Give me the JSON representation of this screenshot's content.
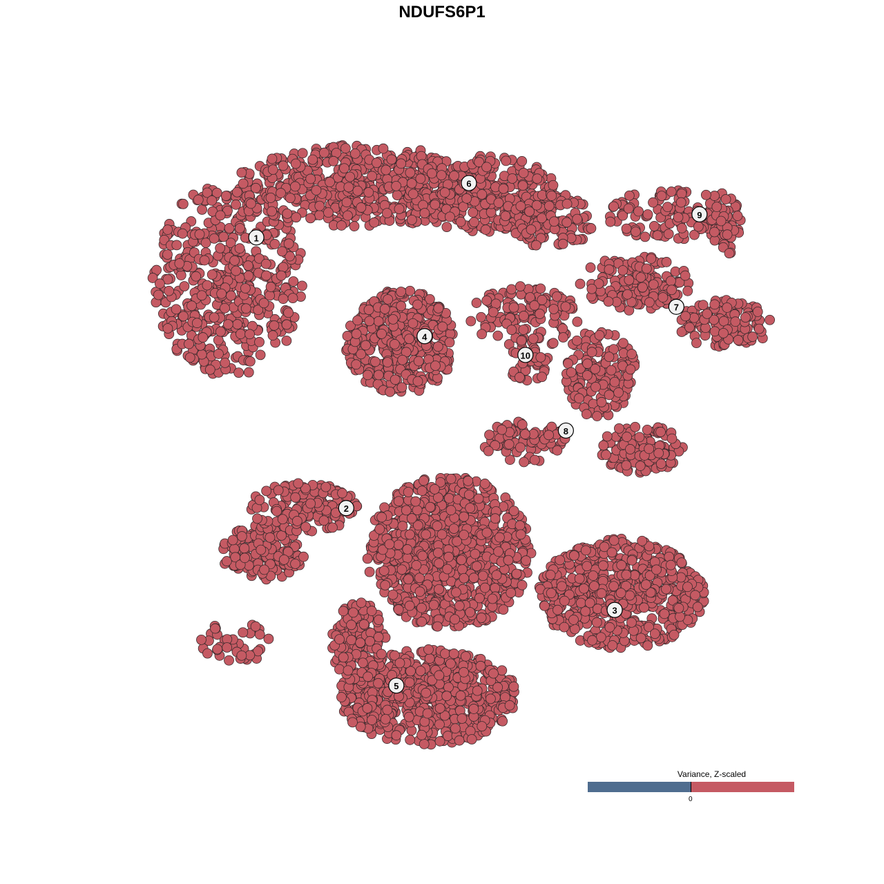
{
  "chart_data": {
    "type": "scatter",
    "title": "NDUFS6P1",
    "xlabel": "",
    "ylabel": "",
    "grid": false,
    "xlim": [
      -50,
      50
    ],
    "ylim": [
      -50,
      50
    ],
    "point_color": "#c55a63",
    "point_edge_color": "#3b2b2d",
    "cluster_labels": [
      {
        "label": "1",
        "x": -31.6,
        "y": 32.4
      },
      {
        "label": "2",
        "x": -17.6,
        "y": -10.9
      },
      {
        "label": "3",
        "x": 24.2,
        "y": -27.2
      },
      {
        "label": "4",
        "x": -5.4,
        "y": 16.6
      },
      {
        "label": "5",
        "x": -9.8,
        "y": -39.3
      },
      {
        "label": "6",
        "x": 1.5,
        "y": 41.1
      },
      {
        "label": "7",
        "x": 33.8,
        "y": 21.3
      },
      {
        "label": "8",
        "x": 16.6,
        "y": 1.5
      },
      {
        "label": "9",
        "x": 37.4,
        "y": 36.1
      },
      {
        "label": "10",
        "x": 10.3,
        "y": 13.6
      }
    ],
    "point_regions": [
      {
        "cluster": "1",
        "cx": -36,
        "cy": 25.7,
        "rx": 11.8,
        "ry": 15.5,
        "n": 500
      },
      {
        "cluster": "1",
        "cx": -15.6,
        "cy": 40.6,
        "rx": 19.4,
        "ry": 6.6,
        "n": 500
      },
      {
        "cluster": "6",
        "cx": 3.8,
        "cy": 39.4,
        "rx": 11.8,
        "ry": 6.1,
        "n": 300
      },
      {
        "cluster": "6",
        "cx": 14.5,
        "cy": 35,
        "rx": 6.5,
        "ry": 4.4,
        "n": 120
      },
      {
        "cluster": "4",
        "cx": -9.1,
        "cy": 15.7,
        "rx": 8.6,
        "ry": 8.3,
        "n": 400
      },
      {
        "cluster": "10",
        "cx": 10.2,
        "cy": 19.6,
        "rx": 8.6,
        "ry": 5,
        "n": 120
      },
      {
        "cluster": "10",
        "cx": 10.8,
        "cy": 12.9,
        "rx": 3.2,
        "ry": 3.9,
        "n": 40
      },
      {
        "cluster": "7",
        "cx": 27.4,
        "cy": 25.1,
        "rx": 8.6,
        "ry": 4.4,
        "n": 150
      },
      {
        "cluster": "7",
        "cx": 41.4,
        "cy": 18.5,
        "rx": 7.5,
        "ry": 3.9,
        "n": 120
      },
      {
        "cluster": "9",
        "cx": 33.9,
        "cy": 36.1,
        "rx": 10.8,
        "ry": 4.4,
        "n": 130
      },
      {
        "cluster": "9",
        "cx": 41.4,
        "cy": 33.9,
        "rx": 2.2,
        "ry": 4.4,
        "n": 40
      },
      {
        "cluster": "8",
        "cx": 22,
        "cy": 10.7,
        "rx": 5.4,
        "ry": 7.7,
        "n": 150
      },
      {
        "cluster": "8",
        "cx": 28.5,
        "cy": -1.4,
        "rx": 6.5,
        "ry": 3.9,
        "n": 120
      },
      {
        "cluster": "8",
        "cx": 10.2,
        "cy": -0.3,
        "rx": 6.5,
        "ry": 3.3,
        "n": 80
      },
      {
        "cluster": "2",
        "cx": -30.6,
        "cy": -18,
        "rx": 6.5,
        "ry": 4.4,
        "n": 150
      },
      {
        "cluster": "2",
        "cx": -24.2,
        "cy": -10.8,
        "rx": 8.6,
        "ry": 3.9,
        "n": 150
      },
      {
        "cluster": "2",
        "cx": -34.9,
        "cy": -32.4,
        "rx": 5.4,
        "ry": 3.3,
        "n": 40
      },
      {
        "cluster": "3",
        "cx": -1.6,
        "cy": -18,
        "rx": 12.9,
        "ry": 12.2,
        "n": 900
      },
      {
        "cluster": "3",
        "cx": 25.3,
        "cy": -24.6,
        "rx": 12.9,
        "ry": 8.8,
        "n": 600
      },
      {
        "cluster": "5",
        "cx": -4.8,
        "cy": -41.2,
        "rx": 14,
        "ry": 7.7,
        "n": 600
      },
      {
        "cluster": "5",
        "cx": -15.6,
        "cy": -32.4,
        "rx": 4.3,
        "ry": 6.6,
        "n": 150
      }
    ],
    "legend": {
      "title": "Variance, Z-scaled",
      "tick": "0",
      "low_color": "#4f6d8f",
      "high_color": "#c55a63",
      "placement": "bottom-right"
    }
  }
}
